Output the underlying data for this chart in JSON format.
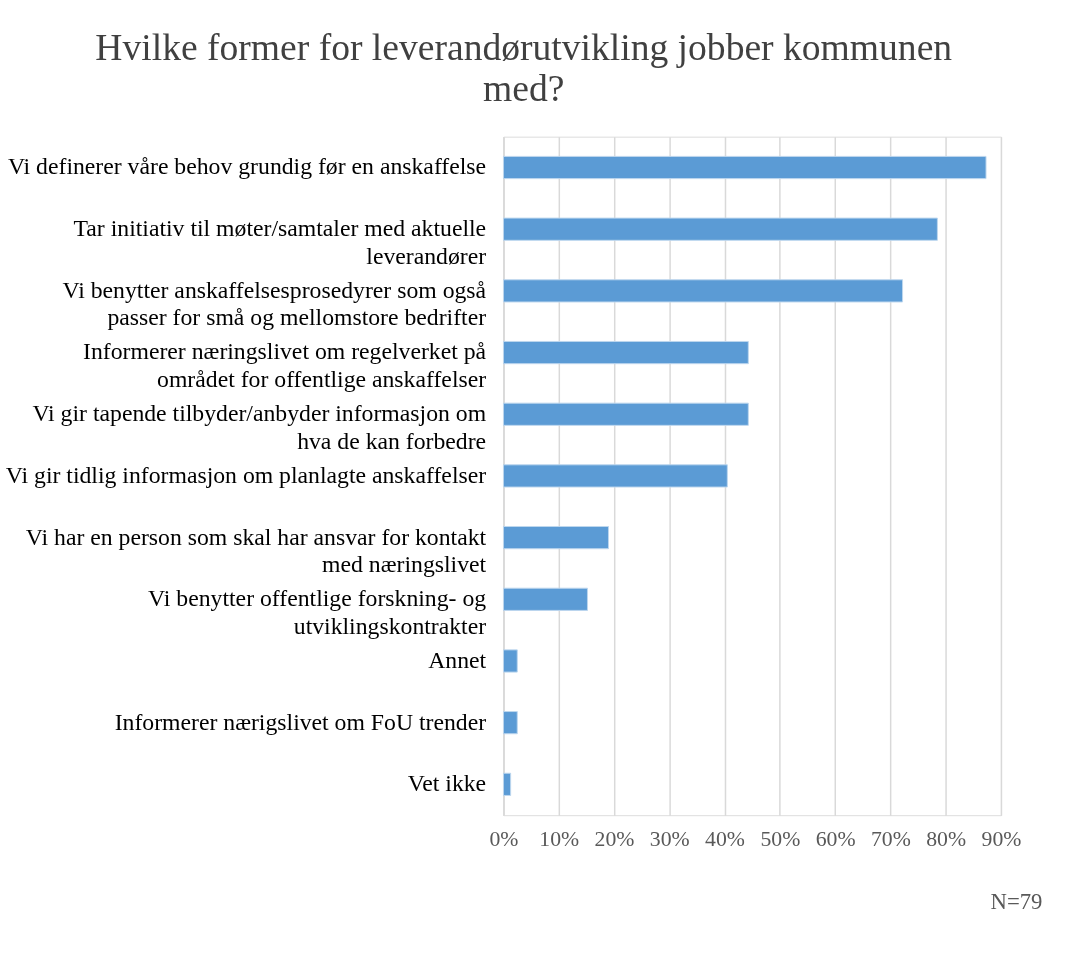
{
  "chart_data": {
    "type": "bar",
    "orientation": "horizontal",
    "title": "Hvilke former for leverandørutvikling jobber kommunen\nmed?",
    "categories": [
      "Vi definerer våre behov grundig før en anskaffelse",
      "Tar initiativ til møter/samtaler med aktuelle\nleverandører",
      "Vi benytter anskaffelsesprosedyrer som også\npasser for små og mellomstore bedrifter",
      "Informerer næringslivet om regelverket på\nområdet for offentlige anskaffelser",
      "Vi gir tapende tilbyder/anbyder informasjon om\nhva de kan forbedre",
      "Vi gir tidlig informasjon om planlagte anskaffelser",
      "Vi har en person som skal har ansvar for kontakt\nmed næringslivet",
      "Vi benytter offentlige forskning- og\nutviklingskontrakter",
      "Annet",
      "Informerer nærigslivet om FoU trender",
      "Vet ikke"
    ],
    "values": [
      87.3,
      78.5,
      72.2,
      44.3,
      44.3,
      40.5,
      19.0,
      15.2,
      2.5,
      2.5,
      1.3
    ],
    "color": "#5b9bd5",
    "xlim": [
      0,
      90
    ],
    "xticks": [
      {
        "value": 0,
        "label": "0%"
      },
      {
        "value": 10,
        "label": "10%"
      },
      {
        "value": 20,
        "label": "20%"
      },
      {
        "value": 30,
        "label": "30%"
      },
      {
        "value": 40,
        "label": "40%"
      },
      {
        "value": 50,
        "label": "50%"
      },
      {
        "value": 60,
        "label": "60%"
      },
      {
        "value": 70,
        "label": "70%"
      },
      {
        "value": 80,
        "label": "80%"
      },
      {
        "value": 90,
        "label": "90%"
      }
    ],
    "grid": "x",
    "annotations": [
      "N=79"
    ]
  }
}
